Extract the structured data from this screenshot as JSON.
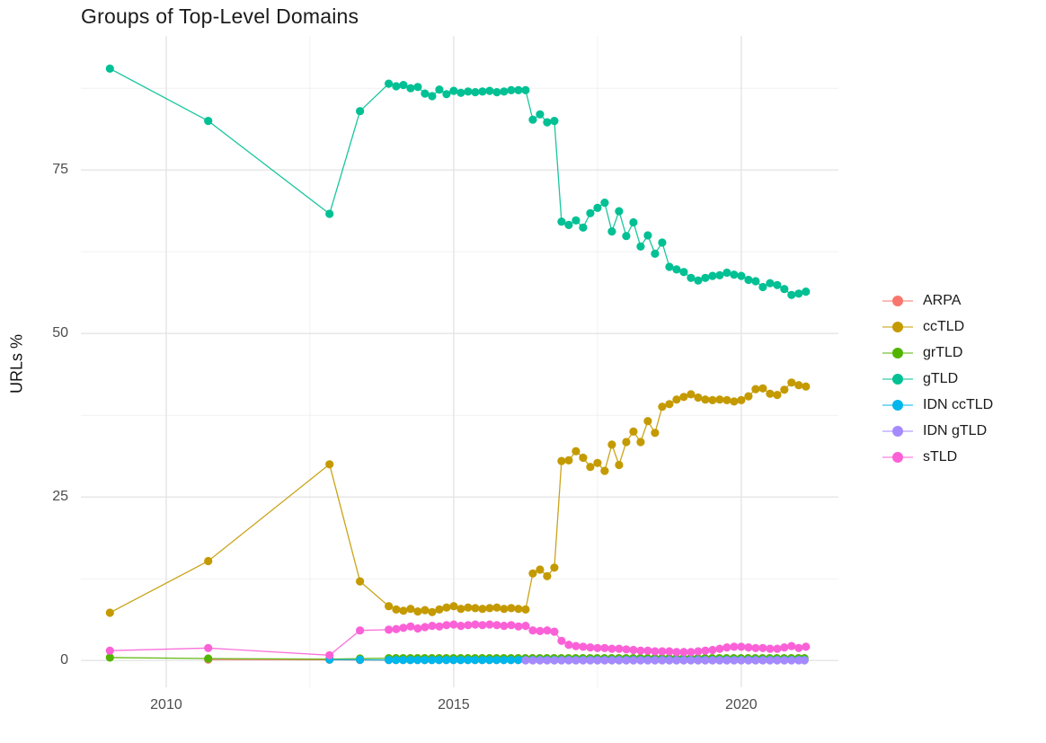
{
  "chart": {
    "title": "Groups of Top-Level Domains",
    "ylabel": "URLs %"
  },
  "chart_data": {
    "type": "line",
    "title": "Groups of Top-Level Domains",
    "xlabel": "",
    "ylabel": "URLs %",
    "legend_position": "right",
    "grid": true,
    "x_range": [
      2008.516,
      2021.69
    ],
    "y_range": [
      -4.1,
      95.5
    ],
    "x_ticks": [
      2010,
      2015,
      2020
    ],
    "x_tick_labels": [
      "2010",
      "2015",
      "2020"
    ],
    "x_minor_ticks": [
      2012.5,
      2017.5
    ],
    "y_ticks": [
      0,
      25,
      50,
      75
    ],
    "y_tick_labels": [
      "0",
      "25",
      "50",
      "75"
    ],
    "y_minor_ticks": [
      12.5,
      37.5,
      62.5,
      87.5
    ],
    "colors": {
      "grid_major": "#E4E4E4",
      "grid_minor": "#F1F1F1",
      "tick_text": "#4D4D4D",
      "title_text": "#1B1B1B",
      "background": "#FFFFFF"
    },
    "series": [
      {
        "name": "ARPA",
        "color": "#F8766D",
        "pre": [
          [
            2010.73,
            0.15
          ],
          [
            2012.84,
            0.1
          ],
          [
            2013.37,
            0.08
          ]
        ],
        "flat": {
          "from": 2013.87,
          "to": 2021.1,
          "step": 0.125,
          "value": 0.07
        }
      },
      {
        "name": "ccTLD",
        "color": "#C49A00",
        "pre": [
          [
            2009.02,
            7.3
          ],
          [
            2010.73,
            15.2
          ],
          [
            2012.84,
            30.0
          ],
          [
            2013.37,
            12.1
          ],
          [
            2013.87,
            8.3
          ]
        ],
        "x0": 2014.0,
        "dx": 0.125,
        "values": [
          7.8,
          7.6,
          7.9,
          7.5,
          7.7,
          7.4,
          7.8,
          8.1,
          8.3,
          7.9,
          8.1,
          8.0,
          7.9,
          8.0,
          8.1,
          7.9,
          8.0,
          7.9,
          7.8,
          13.3,
          13.9,
          12.9,
          14.2,
          30.5,
          30.6,
          32.0,
          31.0,
          29.6,
          30.2,
          29.0,
          33.0,
          29.9,
          33.4,
          35.0,
          33.4,
          36.6,
          34.8,
          38.8,
          39.2,
          39.9,
          40.3,
          40.7,
          40.2,
          39.9,
          39.8,
          39.9,
          39.8,
          39.6,
          39.8,
          40.4,
          41.5,
          41.6,
          40.8,
          40.6,
          41.4,
          42.5,
          42.1,
          41.9
        ]
      },
      {
        "name": "grTLD",
        "color": "#53B400",
        "pre": [
          [
            2009.02,
            0.45
          ],
          [
            2010.73,
            0.3
          ],
          [
            2012.84,
            0.2
          ],
          [
            2013.37,
            0.3
          ]
        ],
        "flat": {
          "from": 2013.87,
          "to": 2021.1,
          "step": 0.125,
          "value": 0.35
        }
      },
      {
        "name": "gTLD",
        "color": "#00C094",
        "pre": [
          [
            2009.02,
            90.5
          ],
          [
            2010.73,
            82.5
          ],
          [
            2012.84,
            68.3
          ],
          [
            2013.37,
            84.0
          ],
          [
            2013.87,
            88.2
          ]
        ],
        "x0": 2014.0,
        "dx": 0.125,
        "values": [
          87.8,
          88.0,
          87.5,
          87.7,
          86.7,
          86.3,
          87.3,
          86.6,
          87.1,
          86.8,
          87.0,
          86.9,
          87.0,
          87.1,
          86.9,
          87.0,
          87.2,
          87.2,
          87.2,
          82.7,
          83.5,
          82.3,
          82.5,
          67.1,
          66.6,
          67.3,
          66.2,
          68.4,
          69.2,
          70.0,
          65.6,
          68.7,
          64.9,
          67.0,
          63.3,
          65.0,
          62.2,
          63.9,
          60.2,
          59.8,
          59.4,
          58.5,
          58.1,
          58.5,
          58.8,
          58.9,
          59.3,
          59.0,
          58.8,
          58.2,
          58.0,
          57.1,
          57.7,
          57.4,
          56.8,
          55.9,
          56.1,
          56.4
        ]
      },
      {
        "name": "IDN ccTLD",
        "color": "#00B6EB",
        "pre": [
          [
            2012.84,
            0.15
          ],
          [
            2013.37,
            0.1
          ]
        ],
        "flat": {
          "from": 2013.87,
          "to": 2021.1,
          "step": 0.125,
          "value": 0.08
        }
      },
      {
        "name": "IDN gTLD",
        "color": "#A58AFF",
        "pre": [],
        "flat": {
          "from": 2016.25,
          "to": 2021.1,
          "step": 0.125,
          "value": 0.02
        }
      },
      {
        "name": "sTLD",
        "color": "#FB61D7",
        "pre": [
          [
            2009.02,
            1.5
          ],
          [
            2010.73,
            1.9
          ],
          [
            2012.84,
            0.8
          ],
          [
            2013.37,
            4.6
          ],
          [
            2013.87,
            4.7
          ]
        ],
        "x0": 2014.0,
        "dx": 0.125,
        "values": [
          4.8,
          5.0,
          5.2,
          4.9,
          5.1,
          5.3,
          5.2,
          5.4,
          5.5,
          5.3,
          5.4,
          5.5,
          5.4,
          5.5,
          5.4,
          5.3,
          5.4,
          5.2,
          5.3,
          4.6,
          4.5,
          4.6,
          4.4,
          3.0,
          2.4,
          2.2,
          2.1,
          2.0,
          1.9,
          1.9,
          1.8,
          1.8,
          1.7,
          1.6,
          1.5,
          1.5,
          1.4,
          1.4,
          1.4,
          1.3,
          1.3,
          1.3,
          1.4,
          1.5,
          1.6,
          1.8,
          2.0,
          2.1,
          2.1,
          2.0,
          1.9,
          1.9,
          1.8,
          1.8,
          2.0,
          2.2,
          1.9,
          2.1
        ]
      }
    ]
  }
}
